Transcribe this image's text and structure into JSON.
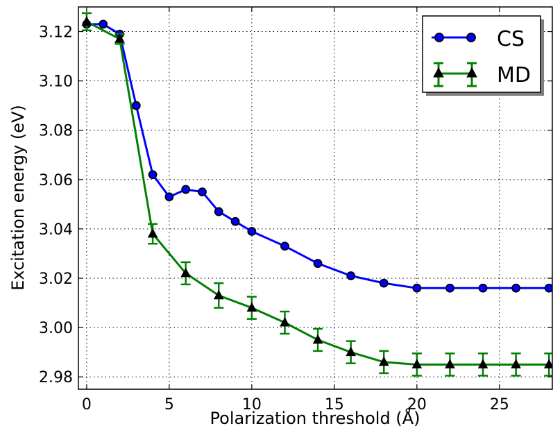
{
  "chart_data": {
    "type": "line",
    "xlabel": "Polarization threshold (Å)",
    "ylabel": "Excitation energy (eV)",
    "xlim": [
      -0.5,
      28.2
    ],
    "ylim": [
      2.975,
      3.13
    ],
    "xticks": [
      0,
      5,
      10,
      15,
      20,
      25
    ],
    "xtick_labels": [
      "0",
      "5",
      "10",
      "15",
      "20",
      "25"
    ],
    "yticks": [
      2.98,
      3.0,
      3.02,
      3.04,
      3.06,
      3.08,
      3.1,
      3.12
    ],
    "ytick_labels": [
      "2.98",
      "3.00",
      "3.02",
      "3.04",
      "3.06",
      "3.08",
      "3.10",
      "3.12"
    ],
    "grid": true,
    "legend_position": "top-right",
    "series": [
      {
        "name": "CS",
        "color": "#0000ff",
        "marker": "circle",
        "x": [
          0,
          1,
          2,
          3,
          4,
          5,
          6,
          7,
          8,
          9,
          10,
          12,
          14,
          16,
          18,
          20,
          22,
          24,
          26,
          28
        ],
        "y": [
          3.123,
          3.123,
          3.119,
          3.09,
          3.062,
          3.053,
          3.056,
          3.055,
          3.047,
          3.043,
          3.039,
          3.033,
          3.026,
          3.021,
          3.018,
          3.016,
          3.016,
          3.016,
          3.016,
          3.016
        ]
      },
      {
        "name": "MD",
        "color": "#008000",
        "marker": "triangle",
        "x": [
          0,
          2,
          4,
          6,
          8,
          10,
          12,
          14,
          16,
          18,
          20,
          22,
          24,
          26,
          28
        ],
        "y": [
          3.124,
          3.117,
          3.038,
          3.022,
          3.013,
          3.008,
          3.002,
          2.995,
          2.99,
          2.986,
          2.985,
          2.985,
          2.985,
          2.985,
          2.985
        ],
        "error": [
          0.0035,
          0.002,
          0.004,
          0.0045,
          0.005,
          0.0045,
          0.0045,
          0.0045,
          0.0045,
          0.0045,
          0.0045,
          0.0045,
          0.0045,
          0.0045,
          0.0045
        ]
      }
    ]
  }
}
